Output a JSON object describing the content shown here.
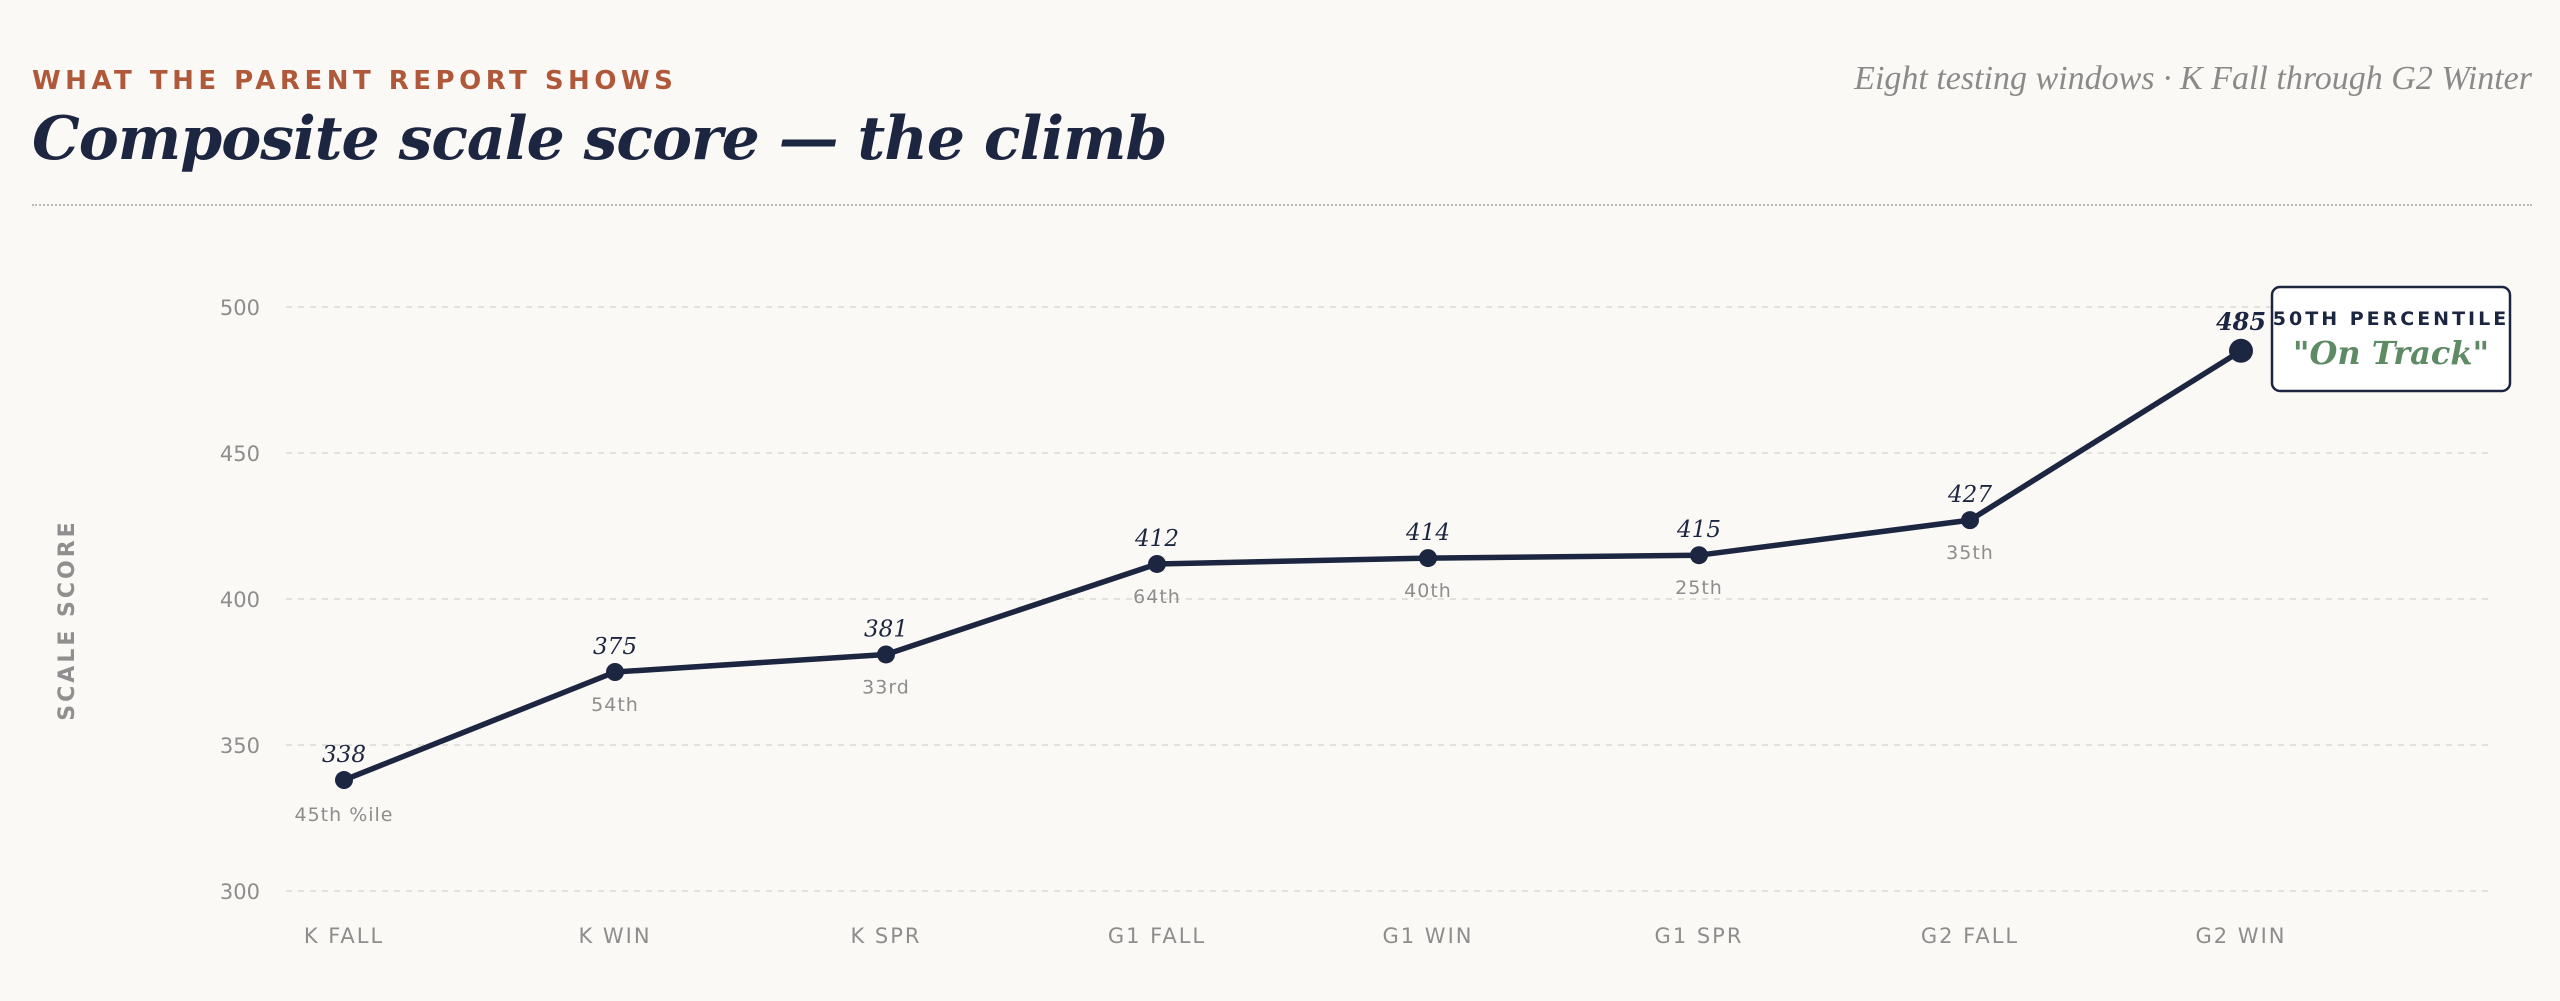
{
  "header": {
    "eyebrow": "WHAT THE PARENT REPORT SHOWS",
    "title": "Composite scale score — the climb",
    "subtitle": "Eight testing windows · K Fall through G2 Winter"
  },
  "chart_data": {
    "type": "line",
    "title": "Composite scale score — the climb",
    "ylabel": "SCALE SCORE",
    "xlabel": "",
    "ylim": [
      300,
      500
    ],
    "yticks": [
      300,
      350,
      400,
      450,
      500
    ],
    "grid": true,
    "categories": [
      "K FALL",
      "K WIN",
      "K SPR",
      "G1 FALL",
      "G1 WIN",
      "G1 SPR",
      "G2 FALL",
      "G2 WIN"
    ],
    "values": [
      338,
      375,
      381,
      412,
      414,
      415,
      427,
      485
    ],
    "value_labels": [
      "338",
      "375",
      "381",
      "412",
      "414",
      "415",
      "427",
      "485"
    ],
    "percentile_labels": [
      "45th %ile",
      "54th",
      "33rd",
      "64th",
      "40th",
      "25th",
      "35th",
      ""
    ],
    "callout": {
      "heading": "50TH PERCENTILE",
      "status": "\"On Track\""
    },
    "colors": {
      "line": "#1c2640",
      "accent": "#b0583a",
      "on_track": "#5e8a64"
    }
  }
}
